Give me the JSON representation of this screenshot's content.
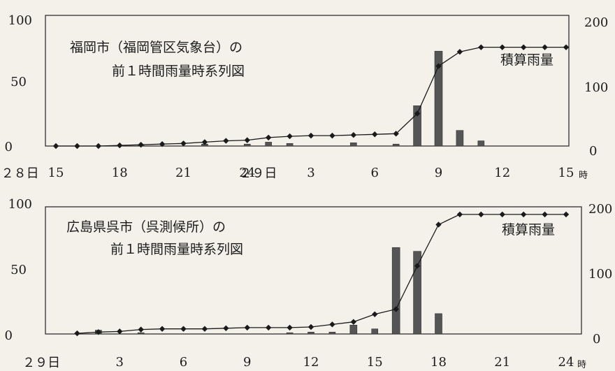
{
  "chart_data": [
    {
      "type": "bar",
      "title": "福岡市（福岡管区気象台）の",
      "subtitle": "前１時間雨量時系列図",
      "annotation": "積算雨量",
      "y_left_ticks": [
        "100",
        "50",
        "0"
      ],
      "y_left_range": [
        0,
        100
      ],
      "y_right_ticks": [
        "200",
        "100",
        "0"
      ],
      "y_right_range": [
        0,
        200
      ],
      "x_tick_labels": [
        {
          "hour": 15,
          "text": "15"
        },
        {
          "hour": 18,
          "text": "18"
        },
        {
          "hour": 21,
          "text": "21"
        },
        {
          "hour": 24,
          "text": "24"
        },
        {
          "hour": 27,
          "text": "3"
        },
        {
          "hour": 30,
          "text": "6"
        },
        {
          "hour": 33,
          "text": "9"
        },
        {
          "hour": 36,
          "text": "12"
        },
        {
          "hour": 39,
          "text": "15"
        }
      ],
      "date_labels": [
        {
          "hour": 14.2,
          "text": "２８日"
        },
        {
          "hour": 25.4,
          "text": "２９日"
        }
      ],
      "x_unit": "時",
      "x_range": [
        15,
        39
      ],
      "series": [
        {
          "type": "bar",
          "color": "#555555",
          "x": [
            19,
            22,
            24,
            25,
            26,
            29,
            31,
            32,
            33,
            34,
            35
          ],
          "values": [
            1,
            1.5,
            1.5,
            3,
            2,
            2.5,
            1.5,
            31,
            73,
            12,
            4
          ]
        },
        {
          "type": "line",
          "axis": "right",
          "color": "#1a1a1a",
          "x": [
            15,
            16,
            17,
            18,
            19,
            20,
            21,
            22,
            23,
            24,
            25,
            26,
            27,
            28,
            29,
            30,
            31,
            32,
            33,
            34,
            35,
            36,
            37,
            38,
            39
          ],
          "values": [
            0,
            0,
            0,
            1,
            2,
            3,
            4,
            6,
            8,
            9,
            13,
            15,
            16,
            16,
            17,
            18,
            19,
            50,
            123,
            145,
            152,
            152,
            152,
            152,
            152
          ]
        }
      ]
    },
    {
      "type": "bar",
      "title": "広島県呉市（呉測候所）の",
      "subtitle": "前１時間雨量時系列図",
      "annotation": "積算雨量",
      "y_left_ticks": [
        "100",
        "50",
        "0"
      ],
      "y_left_range": [
        0,
        100
      ],
      "y_right_ticks": [
        "200",
        "100",
        "0"
      ],
      "y_right_range": [
        0,
        200
      ],
      "x_tick_labels": [
        {
          "hour": 3,
          "text": "3"
        },
        {
          "hour": 6,
          "text": "6"
        },
        {
          "hour": 9,
          "text": "9"
        },
        {
          "hour": 12,
          "text": "12"
        },
        {
          "hour": 15,
          "text": "15"
        },
        {
          "hour": 18,
          "text": "18"
        },
        {
          "hour": 21,
          "text": "21"
        },
        {
          "hour": 24,
          "text": "24"
        }
      ],
      "date_labels": [
        {
          "hour": 0.2,
          "text": "２９日"
        }
      ],
      "x_unit": "時",
      "x_range": [
        0,
        24
      ],
      "series": [
        {
          "type": "bar",
          "color": "#555555",
          "x": [
            2,
            4,
            11,
            12,
            13,
            14,
            15,
            16,
            17,
            18
          ],
          "values": [
            3,
            1,
            1,
            1.5,
            1.5,
            7,
            4,
            68,
            65,
            16
          ]
        },
        {
          "type": "line",
          "axis": "right",
          "color": "#1a1a1a",
          "x": [
            1,
            2,
            3,
            4,
            5,
            6,
            7,
            8,
            9,
            10,
            11,
            12,
            13,
            14,
            15,
            16,
            17,
            18,
            19,
            20,
            21,
            22,
            23,
            24
          ],
          "values": [
            1,
            3,
            4,
            7,
            8,
            8,
            8,
            9,
            10,
            10,
            10,
            11,
            15,
            19,
            31,
            39,
            107,
            172,
            188,
            188,
            188,
            188,
            188,
            188
          ]
        }
      ]
    }
  ]
}
